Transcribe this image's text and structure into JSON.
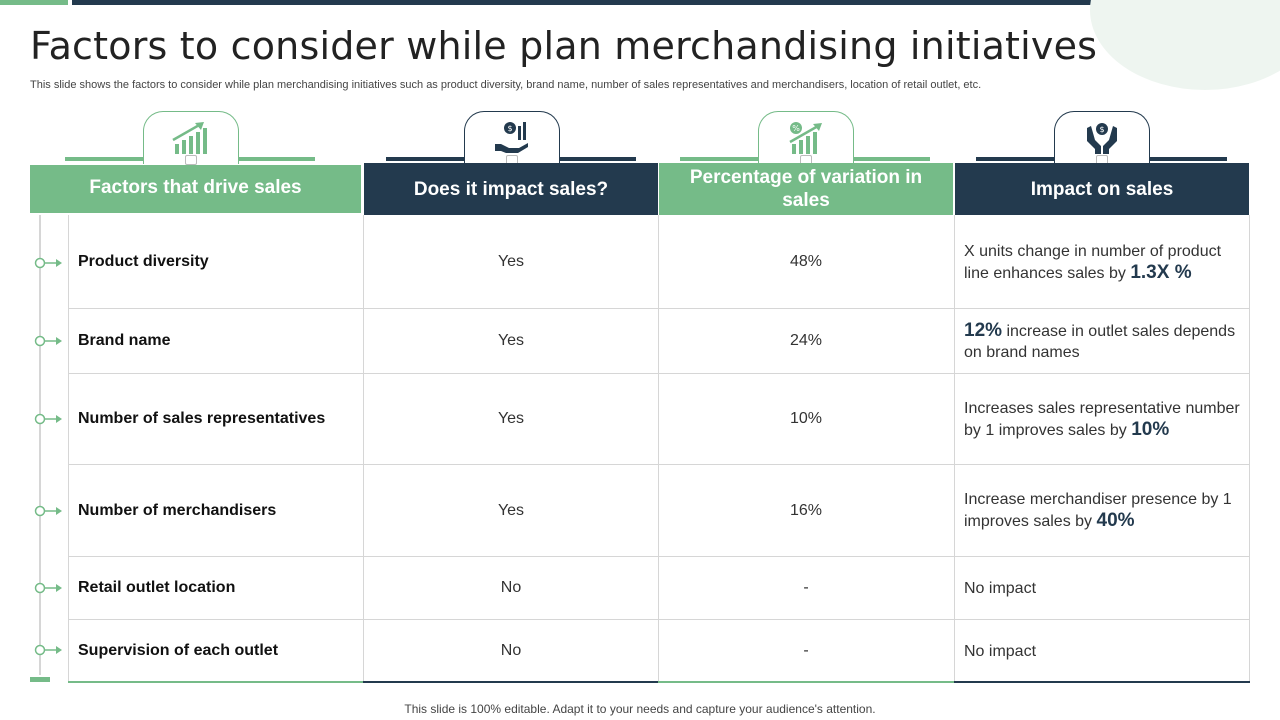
{
  "slide": {
    "title": "Factors to consider while plan merchandising initiatives",
    "subtitle": "This slide shows the factors to consider while plan merchandising initiatives such as product diversity, brand name, number of sales representatives and merchandisers, location of retail outlet, etc.",
    "footer": "This slide is 100% editable. Adapt it to your needs and capture your audience's attention."
  },
  "colors": {
    "accent_green": "#75bb88",
    "accent_dark": "#233a4e",
    "grid": "#d6d6d6"
  },
  "icons": [
    "growth-chart-icon",
    "money-hand-icon",
    "growth-percent-icon",
    "hands-money-icon"
  ],
  "table": {
    "headers": [
      "Factors that drive sales",
      "Does it impact sales?",
      "Percentage of variation in sales",
      "Impact on sales"
    ],
    "rows": [
      {
        "factor": "Product diversity",
        "impact": "Yes",
        "variation": "48%",
        "impact_pre": "X units change in number of product line enhances sales by ",
        "impact_big": "1.3X %",
        "impact_post": ""
      },
      {
        "factor": "Brand name",
        "impact": "Yes",
        "variation": "24%",
        "impact_pre": "",
        "impact_big": "12%",
        "impact_post": " increase in outlet sales depends on brand names"
      },
      {
        "factor": "Number of sales representatives",
        "impact": "Yes",
        "variation": "10%",
        "impact_pre": "Increases sales representative number by 1 improves sales by ",
        "impact_big": "10%",
        "impact_post": ""
      },
      {
        "factor": "Number of merchandisers",
        "impact": "Yes",
        "variation": "16%",
        "impact_pre": "Increase merchandiser presence by 1 improves sales by ",
        "impact_big": "40%",
        "impact_post": ""
      },
      {
        "factor": "Retail outlet location",
        "impact": "No",
        "variation": "-",
        "impact_pre": "No impact",
        "impact_big": "",
        "impact_post": ""
      },
      {
        "factor": "Supervision of each outlet",
        "impact": "No",
        "variation": "-",
        "impact_pre": "No impact",
        "impact_big": "",
        "impact_post": ""
      }
    ]
  }
}
